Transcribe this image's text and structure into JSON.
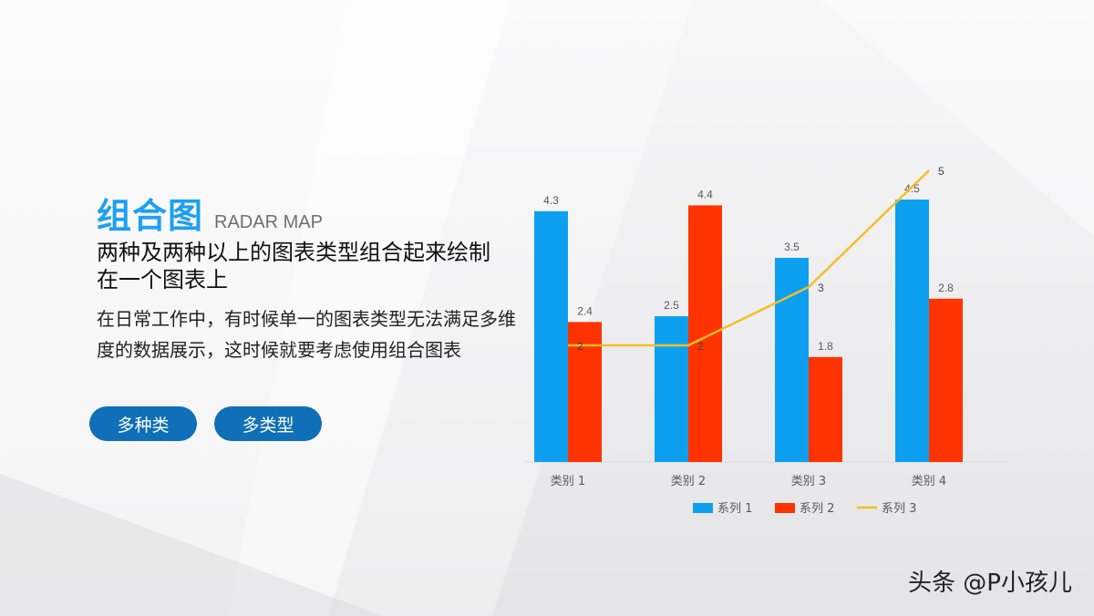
{
  "title_cn": "组合图",
  "title_en": "RADAR MAP",
  "subtitle": "两种及两种以上的图表类型组合起来绘制在一个图表上",
  "description": "在日常工作中，有时候单一的图表类型无法满足多维度的数据展示，这时候就要考虑使用组合图表",
  "tags": [
    "多种类",
    "多类型"
  ],
  "watermark": "头条 @P小孩儿",
  "colors": {
    "accent": "#1e9ff2",
    "tag_bg": "#0f6fb8",
    "series1": "#0ea0f0",
    "series2": "#ff3300",
    "series3": "#f5be21"
  },
  "chart_data": {
    "type": "bar+line",
    "categories": [
      "类别 1",
      "类别 2",
      "类别 3",
      "类别 4"
    ],
    "series": [
      {
        "name": "系列 1",
        "type": "bar",
        "values": [
          4.3,
          2.5,
          3.5,
          4.5
        ]
      },
      {
        "name": "系列 2",
        "type": "bar",
        "values": [
          2.4,
          4.4,
          1.8,
          2.8
        ]
      },
      {
        "name": "系列 3",
        "type": "line",
        "values": [
          2,
          2,
          3,
          5
        ]
      }
    ],
    "ylim": [
      0,
      5
    ],
    "grid": false,
    "legend": "bottom"
  }
}
